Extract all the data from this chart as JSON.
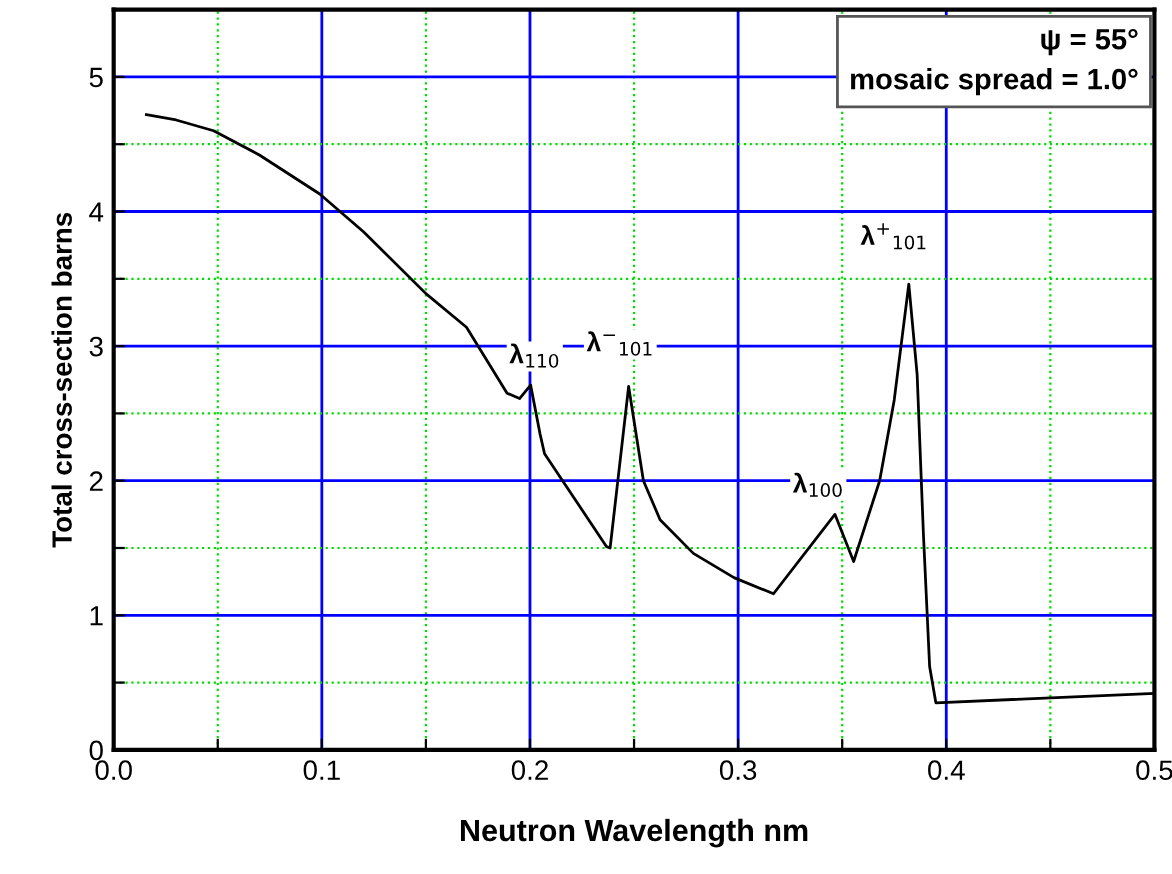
{
  "chart_data": {
    "type": "line",
    "xlabel": "Neutron Wavelength nm",
    "ylabel": "Total cross-section barns",
    "series": [
      {
        "color": "#000000",
        "x": [
          0.0157,
          0.03,
          0.048,
          0.07,
          0.099,
          0.12,
          0.15,
          0.1695,
          0.189,
          0.195,
          0.2003,
          0.2048,
          0.207,
          0.2368,
          0.2385,
          0.2474,
          0.2545,
          0.2625,
          0.2785,
          0.298,
          0.317,
          0.3465,
          0.3555,
          0.368,
          0.375,
          0.382,
          0.386,
          0.389,
          0.392,
          0.395,
          0.5
        ],
        "values": [
          4.72,
          4.68,
          4.6,
          4.42,
          4.13,
          3.85,
          3.39,
          3.14,
          2.65,
          2.61,
          2.71,
          2.35,
          2.2,
          1.51,
          1.5,
          2.7,
          2.0,
          1.71,
          1.46,
          1.28,
          1.16,
          1.75,
          1.4,
          2.0,
          2.6,
          3.46,
          2.79,
          1.61,
          0.62,
          0.35,
          0.42
        ]
      }
    ],
    "xlim": [
      0,
      0.5
    ],
    "ylim": [
      0,
      5.5
    ],
    "xticks": [
      {
        "value": 0,
        "label": "0.0"
      },
      {
        "value": 0.05,
        "label": null
      },
      0.1,
      {
        "value": 0.15,
        "label": null
      },
      0.2,
      {
        "value": 0.25,
        "label": null
      },
      0.3,
      {
        "value": 0.35,
        "label": null
      },
      0.4,
      {
        "value": 0.45,
        "label": null
      },
      0.5
    ],
    "yticks": [
      0,
      {
        "value": 0.5,
        "label": null
      },
      1,
      {
        "value": 1.5,
        "label": null
      },
      2,
      {
        "value": 2.5,
        "label": null
      },
      3,
      {
        "value": 3.5,
        "label": null
      },
      4,
      {
        "value": 4.5,
        "label": null
      },
      5
    ],
    "grid": true,
    "marker": "none",
    "line_style": "solid",
    "legend": false,
    "annotations": [
      {
        "text": "λ$_{110}$",
        "x": 0.2003,
        "y": 2.71
      },
      {
        "text": "λ$^{−}$$_{101}$",
        "x": 0.2474,
        "y": 2.7
      },
      {
        "text": "λ$_{100}$",
        "x": 0.3465,
        "y": 1.75
      },
      {
        "text": "λ$^{+}$$_{101}$",
        "x": 0.382,
        "y": 3.46
      },
      "ψ = 55°\nmosaic spread = 1.0°"
    ]
  }
}
